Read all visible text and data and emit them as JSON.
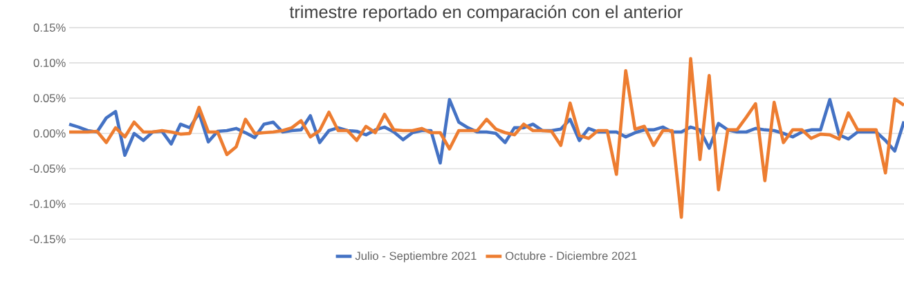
{
  "chart_data": {
    "type": "line",
    "title": "trimestre reportado en comparación con el anterior",
    "categories": [
      null,
      null,
      null,
      null,
      null,
      null,
      null,
      null,
      null,
      null,
      null,
      null,
      null,
      null,
      null,
      null,
      null,
      null,
      null,
      null,
      null,
      null,
      null,
      null,
      null,
      null,
      null,
      null,
      null,
      null,
      null,
      null,
      null,
      null,
      null,
      null,
      null,
      null,
      null,
      null,
      null,
      null,
      null,
      null,
      null,
      null,
      null,
      null,
      null,
      null,
      null,
      null,
      null,
      null,
      null,
      null,
      null,
      null,
      null,
      null,
      null,
      null,
      null,
      null,
      null,
      null,
      null,
      null,
      null,
      null,
      null,
      null,
      null,
      null,
      null,
      null,
      null,
      null,
      null,
      null,
      null,
      null,
      null,
      null,
      null,
      null,
      null,
      null,
      null,
      null,
      null
    ],
    "series": [
      {
        "name": "Julio - Septiembre 2021",
        "color": "#4472c4",
        "values": [
          0.013,
          0.009,
          0.004,
          0.002,
          0.022,
          0.031,
          -0.031,
          0.0,
          -0.01,
          0.002,
          0.003,
          -0.015,
          0.013,
          0.008,
          0.029,
          -0.012,
          0.003,
          0.004,
          0.007,
          0.001,
          -0.006,
          0.013,
          0.016,
          0.002,
          0.004,
          0.005,
          0.025,
          -0.013,
          0.004,
          0.008,
          0.004,
          0.003,
          -0.002,
          0.005,
          0.009,
          0.002,
          -0.009,
          0.001,
          0.004,
          0.004,
          -0.042,
          0.048,
          0.016,
          0.008,
          0.002,
          0.002,
          0.0,
          -0.013,
          0.008,
          0.008,
          0.013,
          0.004,
          0.004,
          0.006,
          0.02,
          -0.01,
          0.007,
          0.002,
          0.002,
          0.002,
          -0.005,
          0.001,
          0.005,
          0.005,
          0.009,
          0.002,
          0.002,
          0.009,
          0.005,
          -0.021,
          0.014,
          0.005,
          0.002,
          0.002,
          0.007,
          0.005,
          0.004,
          0.0,
          -0.005,
          0.002,
          0.005,
          0.005,
          0.048,
          -0.002,
          -0.008,
          0.002,
          0.002,
          0.002,
          -0.01,
          -0.025,
          0.017
        ]
      },
      {
        "name": "Octubre - Diciembre 2021",
        "color": "#ed7d31",
        "values": [
          0.002,
          0.002,
          0.002,
          0.003,
          -0.013,
          0.008,
          -0.005,
          0.016,
          0.002,
          0.002,
          0.004,
          0.002,
          -0.001,
          0.0,
          0.037,
          0.002,
          0.002,
          -0.03,
          -0.019,
          0.02,
          0.0,
          0.001,
          0.002,
          0.004,
          0.008,
          0.018,
          -0.005,
          0.004,
          0.03,
          0.004,
          0.004,
          -0.01,
          0.01,
          0.001,
          0.027,
          0.005,
          0.004,
          0.004,
          0.007,
          0.001,
          0.001,
          -0.022,
          0.004,
          0.004,
          0.004,
          0.02,
          0.006,
          0.001,
          -0.002,
          0.013,
          0.004,
          0.004,
          0.003,
          -0.017,
          0.043,
          -0.003,
          -0.007,
          0.004,
          0.004,
          -0.058,
          0.089,
          0.006,
          0.01,
          -0.017,
          0.004,
          0.004,
          -0.119,
          0.106,
          -0.037,
          0.082,
          -0.08,
          0.005,
          0.005,
          0.023,
          0.042,
          -0.067,
          0.044,
          -0.013,
          0.005,
          0.005,
          -0.007,
          -0.001,
          -0.002,
          -0.008,
          0.029,
          0.005,
          0.005,
          0.005,
          -0.056,
          0.049,
          0.04
        ]
      }
    ],
    "ylim": [
      -0.15,
      0.15
    ],
    "yticks": [
      {
        "value": -0.15,
        "label": "-0.15%"
      },
      {
        "value": -0.1,
        "label": "-0.10%"
      },
      {
        "value": -0.05,
        "label": "-0.05%"
      },
      {
        "value": 0,
        "label": "0.00%"
      },
      {
        "value": 0.05,
        "label": "0.05%"
      },
      {
        "value": 0.1,
        "label": "0.10%"
      },
      {
        "value": 0.15,
        "label": "0.15%"
      }
    ],
    "grid": "y",
    "legend": "bottom",
    "tick_labels": "y",
    "marker": "none",
    "line_style": "solid"
  }
}
